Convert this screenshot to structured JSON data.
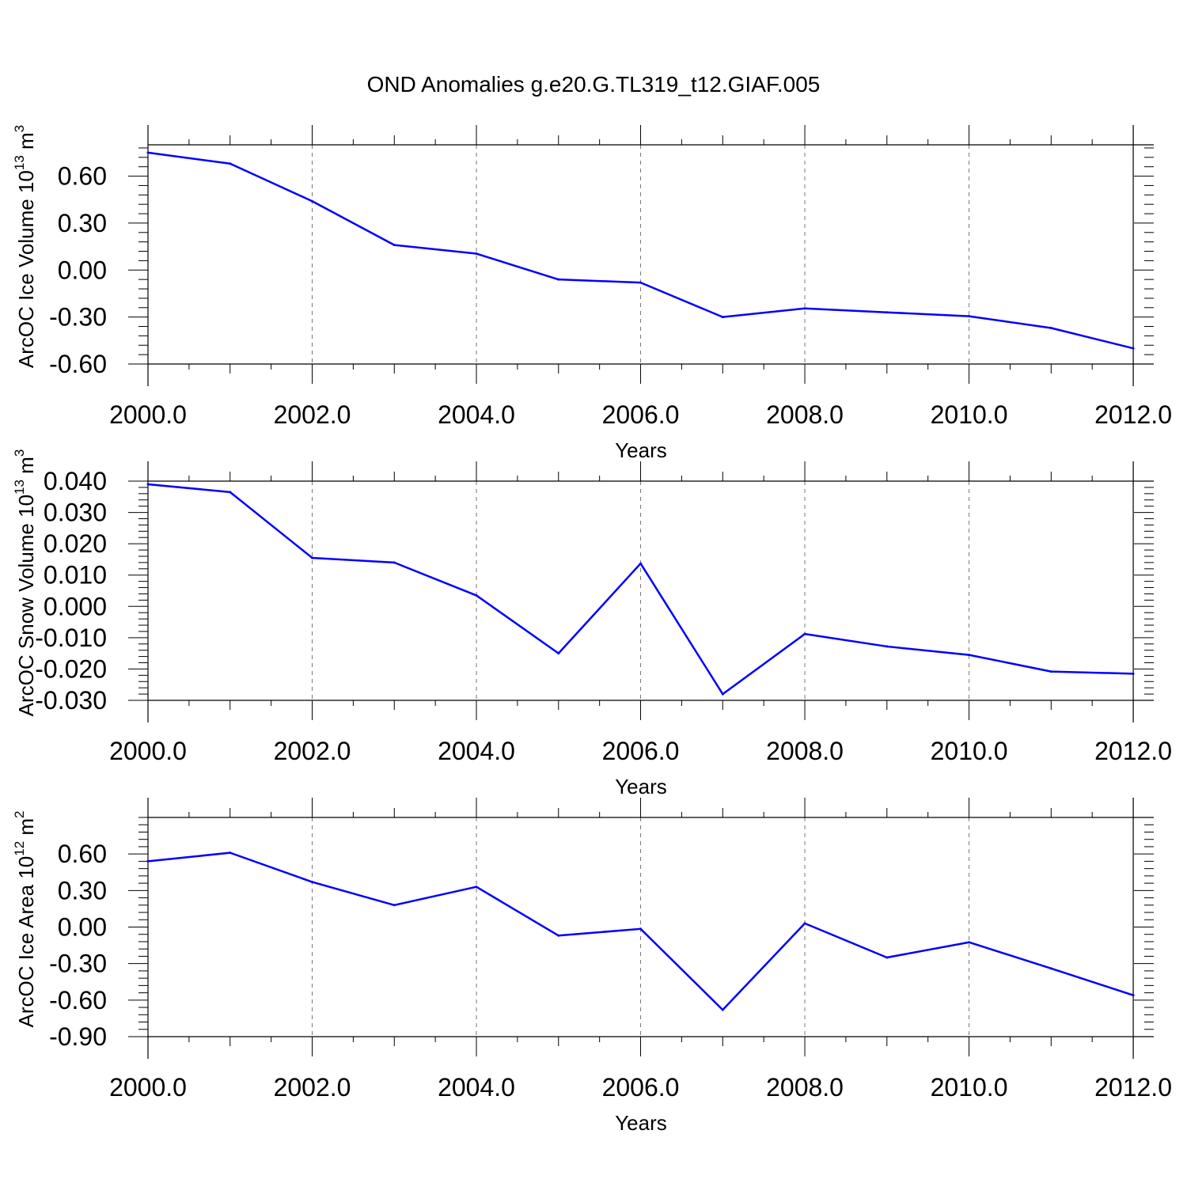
{
  "title": "OND Anomalies g.e20.G.TL319_t12.GIAF.005",
  "colors": {
    "line": "#0000ff",
    "axis": "#000000",
    "grid": "#777777"
  },
  "chart_data": [
    {
      "type": "line",
      "title": "OND Anomalies g.e20.G.TL319_t12.GIAF.005",
      "xlabel": "Years",
      "ylabel": {
        "text": "ArcOC Ice Volume 10",
        "sup1": "13",
        "unit": " m",
        "sup2": "3"
      },
      "x": [
        2000,
        2001,
        2002,
        2003,
        2004,
        2005,
        2006,
        2007,
        2008,
        2009,
        2010,
        2011,
        2012
      ],
      "series": [
        {
          "name": "ArcOC Ice Volume",
          "values": [
            0.75,
            0.68,
            0.44,
            0.16,
            0.105,
            -0.06,
            -0.08,
            -0.3,
            -0.245,
            -0.27,
            -0.295,
            -0.37,
            -0.5
          ]
        }
      ],
      "xlim": [
        2000,
        2012.25
      ],
      "ylim": [
        -0.6,
        0.8
      ],
      "xticks": [
        2000,
        2002,
        2004,
        2006,
        2008,
        2010,
        2012
      ],
      "xtick_labels": [
        "2000.0",
        "2002.0",
        "2004.0",
        "2006.0",
        "2008.0",
        "2010.0",
        "2012.0"
      ],
      "yticks": [
        0.6,
        0.3,
        0.0,
        -0.3,
        -0.6
      ],
      "ytick_labels": [
        "0.60",
        "0.30",
        "0.00",
        "-0.30",
        "-0.60"
      ],
      "grid": "x-major dashed"
    },
    {
      "type": "line",
      "xlabel": "Years",
      "ylabel": {
        "text": "ArcOC Snow Volume 10",
        "sup1": "13",
        "unit": " m",
        "sup2": "3"
      },
      "x": [
        2000,
        2001,
        2002,
        2003,
        2004,
        2005,
        2006,
        2007,
        2008,
        2009,
        2010,
        2011,
        2012
      ],
      "series": [
        {
          "name": "ArcOC Snow Volume",
          "values": [
            0.039,
            0.0365,
            0.0155,
            0.014,
            0.0035,
            -0.015,
            0.0137,
            -0.028,
            -0.0088,
            -0.0128,
            -0.0155,
            -0.0208,
            -0.0215
          ]
        }
      ],
      "xlim": [
        2000,
        2012.25
      ],
      "ylim": [
        -0.03,
        0.04
      ],
      "xticks": [
        2000,
        2002,
        2004,
        2006,
        2008,
        2010,
        2012
      ],
      "xtick_labels": [
        "2000.0",
        "2002.0",
        "2004.0",
        "2006.0",
        "2008.0",
        "2010.0",
        "2012.0"
      ],
      "yticks": [
        0.04,
        0.03,
        0.02,
        0.01,
        0.0,
        -0.01,
        -0.02,
        -0.03
      ],
      "ytick_labels": [
        "0.040",
        "0.030",
        "0.020",
        "0.010",
        "0.000",
        "-0.010",
        "-0.020",
        "-0.030"
      ],
      "grid": "x-major dashed"
    },
    {
      "type": "line",
      "xlabel": "Years",
      "ylabel": {
        "text": "ArcOC Ice Area 10",
        "sup1": "12",
        "unit": " m",
        "sup2": "2"
      },
      "x": [
        2000,
        2001,
        2002,
        2003,
        2004,
        2005,
        2006,
        2007,
        2008,
        2009,
        2010,
        2011,
        2012
      ],
      "series": [
        {
          "name": "ArcOC Ice Area",
          "values": [
            0.54,
            0.61,
            0.37,
            0.18,
            0.33,
            -0.07,
            -0.015,
            -0.68,
            0.03,
            -0.25,
            -0.125,
            -0.34,
            -0.56
          ]
        }
      ],
      "xlim": [
        2000,
        2012.25
      ],
      "ylim": [
        -0.9,
        0.9
      ],
      "xticks": [
        2000,
        2002,
        2004,
        2006,
        2008,
        2010,
        2012
      ],
      "xtick_labels": [
        "2000.0",
        "2002.0",
        "2004.0",
        "2006.0",
        "2008.0",
        "2010.0",
        "2012.0"
      ],
      "yticks": [
        0.6,
        0.3,
        0.0,
        -0.3,
        -0.6,
        -0.9
      ],
      "ytick_labels": [
        "0.60",
        "0.30",
        "0.00",
        "-0.30",
        "-0.60",
        "-0.90"
      ],
      "grid": "x-major dashed"
    }
  ]
}
